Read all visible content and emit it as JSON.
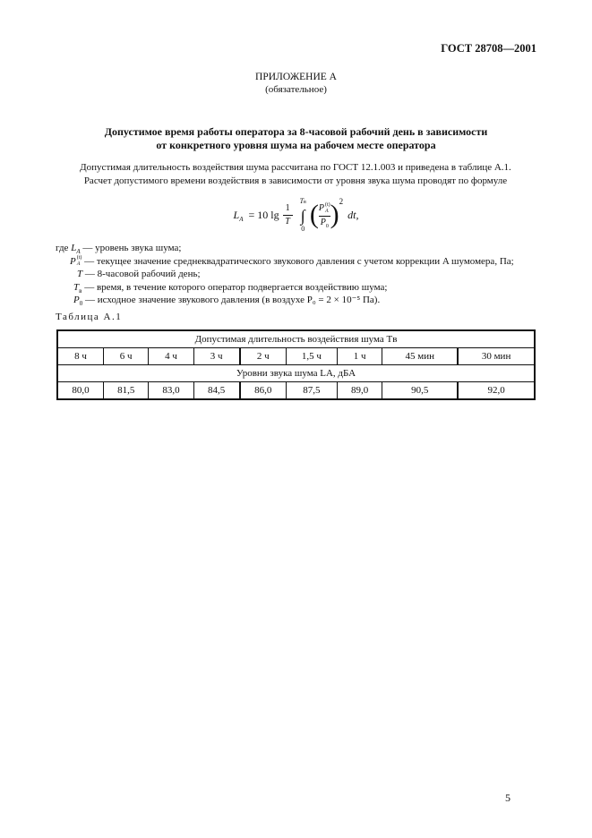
{
  "header": {
    "doc_id": "ГОСТ 28708—2001"
  },
  "appendix": {
    "title": "ПРИЛОЖЕНИЕ А",
    "status": "(обязательное)"
  },
  "heading": {
    "line1": "Допустимое время работы оператора за 8-часовой рабочий день в зависимости",
    "line2": "от конкретного уровня шума на рабочем месте оператора"
  },
  "intro": {
    "line1": "Допустимая длительность воздействия шума рассчитана по ГОСТ 12.1.003 и приведена в таблице А.1.",
    "line2": "Расчет допустимого времени воздействия в зависимости от уровня звука шума проводят по формуле"
  },
  "formula": {
    "lhs": "L",
    "lhs_sub": "A",
    "eq": "= 10 lg",
    "num": "1",
    "den": "T",
    "upper": "T",
    "upper_sub": "в",
    "lower": "0",
    "p": "P",
    "p_sup": "(t)",
    "p_sub": "A",
    "p0": "P",
    "p0_sub": "0",
    "exp": "2",
    "dt": "dt,"
  },
  "legend": [
    {
      "prefix": "где ",
      "sym": "L",
      "sub": "A",
      "text": " — уровень звука шума;"
    },
    {
      "prefix": "",
      "sym": "P",
      "sub": "A",
      "sup": "(t)",
      "text": " — текущее значение среднеквадратического звукового давления с учетом коррекции A шумомера, Па;"
    },
    {
      "prefix": "",
      "sym": "T",
      "sub": "",
      "text": " — 8-часовой рабочий день;"
    },
    {
      "prefix": "",
      "sym": "T",
      "sub": "в",
      "text": " — время, в течение которого оператор подвергается воздействию шума;"
    },
    {
      "prefix": "",
      "sym": "P",
      "sub": "0",
      "text": " — исходное значение звукового давления (в воздухе P₀ = 2 × 10⁻⁵ Па)."
    }
  ],
  "table": {
    "caption": "Таблица А.1",
    "header1": "Допустимая длительность воздействия шума Tв",
    "durations": [
      "8 ч",
      "6 ч",
      "4 ч",
      "3 ч",
      "2 ч",
      "1,5 ч",
      "1 ч",
      "45 мин",
      "30 мин"
    ],
    "header2": "Уровни звука шума LA,  дБА",
    "levels": [
      "80,0",
      "81,5",
      "83,0",
      "84,5",
      "86,0",
      "87,5",
      "89,0",
      "90,5",
      "92,0"
    ]
  },
  "footer": {
    "page_number": "5"
  }
}
